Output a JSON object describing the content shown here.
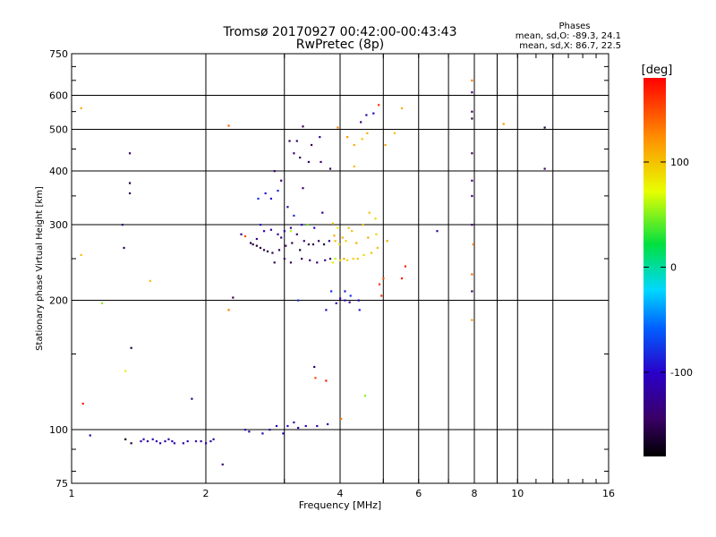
{
  "chart_data": {
    "type": "scatter",
    "title": "Tromsø 20170927 00:42:00-00:43:43",
    "subtitle": "RwPretec (8p)",
    "xlabel": "Frequency [MHz]",
    "ylabel": "Stationary phase Virtual Height [km]",
    "x_scale": "log",
    "y_scale": "log",
    "xlim": [
      1,
      16
    ],
    "ylim": [
      75,
      750
    ],
    "x_ticks": [
      1,
      2,
      4,
      6,
      8,
      10,
      16
    ],
    "y_ticks": [
      75,
      100,
      200,
      300,
      400,
      500,
      600,
      750
    ],
    "x_minor_gridlines": [
      3,
      5,
      7,
      9,
      12
    ],
    "grid": true,
    "phase_stats": {
      "title": "Phases",
      "o_line": "mean, sd,O: -89.3, 24.1",
      "x_line": "mean, sd,X: 86.7, 22.5"
    },
    "colorbar": {
      "label": "[deg]",
      "range": [
        -180,
        180
      ],
      "ticks": [
        100,
        0,
        -100
      ]
    },
    "point_color_unit": "deg",
    "points": [
      [
        1.05,
        560,
        110
      ],
      [
        1.05,
        255,
        100
      ],
      [
        1.06,
        115,
        170
      ],
      [
        1.1,
        97,
        -120
      ],
      [
        1.17,
        197,
        50
      ],
      [
        1.3,
        300,
        -140
      ],
      [
        1.31,
        265,
        -150
      ],
      [
        1.32,
        95,
        -170
      ],
      [
        1.32,
        137,
        80
      ],
      [
        1.35,
        440,
        -150
      ],
      [
        1.35,
        375,
        -160
      ],
      [
        1.35,
        355,
        -150
      ],
      [
        1.36,
        155,
        -160
      ],
      [
        1.36,
        93,
        -160
      ],
      [
        1.5,
        222,
        100
      ],
      [
        1.43,
        94,
        -115
      ],
      [
        1.45,
        95,
        -110
      ],
      [
        1.48,
        94,
        -120
      ],
      [
        1.52,
        95,
        -110
      ],
      [
        1.55,
        94,
        -115
      ],
      [
        1.58,
        93,
        -110
      ],
      [
        1.62,
        94,
        -120
      ],
      [
        1.65,
        95,
        -115
      ],
      [
        1.68,
        94,
        -110
      ],
      [
        1.7,
        93,
        -120
      ],
      [
        1.78,
        93,
        -115
      ],
      [
        1.82,
        94,
        -110
      ],
      [
        1.86,
        118,
        -130
      ],
      [
        1.9,
        94,
        -115
      ],
      [
        1.95,
        94,
        -120
      ],
      [
        2.0,
        93,
        -110
      ],
      [
        2.05,
        94,
        -115
      ],
      [
        2.08,
        95,
        -120
      ],
      [
        2.18,
        83,
        -140
      ],
      [
        2.25,
        510,
        140
      ],
      [
        2.25,
        190,
        130
      ],
      [
        2.3,
        203,
        -150
      ],
      [
        2.4,
        285,
        -130
      ],
      [
        2.45,
        282,
        150
      ],
      [
        2.45,
        100,
        -110
      ],
      [
        2.5,
        99,
        -120
      ],
      [
        2.52,
        272,
        -160
      ],
      [
        2.55,
        270,
        -150
      ],
      [
        2.6,
        268,
        -160
      ],
      [
        2.6,
        278,
        -120
      ],
      [
        2.62,
        345,
        -80
      ],
      [
        2.65,
        265,
        -160
      ],
      [
        2.65,
        300,
        -100
      ],
      [
        2.68,
        98,
        -110
      ],
      [
        2.7,
        262,
        -155
      ],
      [
        2.7,
        290,
        -110
      ],
      [
        2.72,
        355,
        -90
      ],
      [
        2.75,
        260,
        -160
      ],
      [
        2.78,
        100,
        -120
      ],
      [
        2.8,
        345,
        -95
      ],
      [
        2.8,
        292,
        -120
      ],
      [
        2.82,
        258,
        -150
      ],
      [
        2.85,
        400,
        -140
      ],
      [
        2.85,
        245,
        -150
      ],
      [
        2.88,
        102,
        -110
      ],
      [
        2.9,
        285,
        -130
      ],
      [
        2.9,
        360,
        -85
      ],
      [
        2.92,
        262,
        -145
      ],
      [
        2.95,
        280,
        -140
      ],
      [
        2.95,
        380,
        -140
      ],
      [
        2.98,
        98,
        -110
      ],
      [
        3.0,
        290,
        -120
      ],
      [
        3.0,
        250,
        -140
      ],
      [
        3.02,
        268,
        -150
      ],
      [
        3.05,
        330,
        -120
      ],
      [
        3.05,
        102,
        -100
      ],
      [
        3.08,
        470,
        -150
      ],
      [
        3.1,
        295,
        -130
      ],
      [
        3.1,
        290,
        60
      ],
      [
        3.1,
        245,
        -145
      ],
      [
        3.12,
        272,
        -150
      ],
      [
        3.15,
        440,
        -140
      ],
      [
        3.15,
        315,
        -80
      ],
      [
        3.15,
        104,
        -115
      ],
      [
        3.2,
        285,
        -135
      ],
      [
        3.2,
        470,
        -140
      ],
      [
        3.22,
        200,
        -80
      ],
      [
        3.22,
        101,
        -120
      ],
      [
        3.25,
        430,
        -150
      ],
      [
        3.25,
        262,
        -160
      ],
      [
        3.28,
        250,
        -150
      ],
      [
        3.28,
        300,
        -100
      ],
      [
        3.3,
        365,
        -140
      ],
      [
        3.3,
        508,
        -150
      ],
      [
        3.32,
        275,
        -140
      ],
      [
        3.35,
        102,
        -110
      ],
      [
        3.38,
        300,
        40
      ],
      [
        3.4,
        270,
        -150
      ],
      [
        3.4,
        420,
        -145
      ],
      [
        3.42,
        248,
        -145
      ],
      [
        3.45,
        460,
        -150
      ],
      [
        3.48,
        270,
        -155
      ],
      [
        3.5,
        295,
        -100
      ],
      [
        3.5,
        140,
        -150
      ],
      [
        3.52,
        132,
        150
      ],
      [
        3.55,
        102,
        -115
      ],
      [
        3.55,
        245,
        -140
      ],
      [
        3.58,
        275,
        -150
      ],
      [
        3.6,
        480,
        -130
      ],
      [
        3.62,
        420,
        -140
      ],
      [
        3.65,
        320,
        -130
      ],
      [
        3.68,
        270,
        -160
      ],
      [
        3.7,
        248,
        -130
      ],
      [
        3.72,
        190,
        -100
      ],
      [
        3.72,
        130,
        170
      ],
      [
        3.75,
        103,
        -110
      ],
      [
        3.78,
        275,
        -140
      ],
      [
        3.8,
        405,
        -150
      ],
      [
        3.8,
        250,
        -140
      ],
      [
        3.82,
        210,
        -80
      ],
      [
        3.85,
        302,
        100
      ],
      [
        3.85,
        245,
        80
      ],
      [
        3.88,
        283,
        110
      ],
      [
        3.9,
        275,
        100
      ],
      [
        3.9,
        250,
        60
      ],
      [
        3.92,
        197,
        -120
      ],
      [
        3.95,
        295,
        80
      ],
      [
        3.95,
        505,
        130
      ],
      [
        3.98,
        270,
        90
      ],
      [
        4.0,
        248,
        90
      ],
      [
        4.0,
        202,
        -110
      ],
      [
        4.02,
        106,
        130
      ],
      [
        4.05,
        280,
        110
      ],
      [
        4.08,
        250,
        110
      ],
      [
        4.1,
        200,
        -110
      ],
      [
        4.1,
        210,
        -90
      ],
      [
        4.12,
        275,
        90
      ],
      [
        4.15,
        248,
        90
      ],
      [
        4.15,
        480,
        120
      ],
      [
        4.18,
        295,
        100
      ],
      [
        4.2,
        198,
        -120
      ],
      [
        4.22,
        205,
        -80
      ],
      [
        4.25,
        290,
        100
      ],
      [
        4.28,
        250,
        95
      ],
      [
        4.3,
        460,
        110
      ],
      [
        4.3,
        410,
        100
      ],
      [
        4.35,
        272,
        110
      ],
      [
        4.38,
        250,
        100
      ],
      [
        4.4,
        200,
        -110
      ],
      [
        4.42,
        190,
        -90
      ],
      [
        4.45,
        520,
        -130
      ],
      [
        4.48,
        475,
        100
      ],
      [
        4.5,
        300,
        100
      ],
      [
        4.52,
        255,
        90
      ],
      [
        4.55,
        120,
        50
      ],
      [
        4.58,
        540,
        -120
      ],
      [
        4.6,
        490,
        110
      ],
      [
        4.62,
        280,
        110
      ],
      [
        4.65,
        320,
        100
      ],
      [
        4.7,
        258,
        100
      ],
      [
        4.75,
        545,
        -100
      ],
      [
        4.8,
        310,
        90
      ],
      [
        4.82,
        285,
        90
      ],
      [
        4.85,
        265,
        100
      ],
      [
        4.88,
        570,
        160
      ],
      [
        4.9,
        218,
        160
      ],
      [
        4.95,
        205,
        160
      ],
      [
        5.0,
        225,
        150
      ],
      [
        5.05,
        460,
        110
      ],
      [
        5.1,
        275,
        110
      ],
      [
        5.3,
        490,
        100
      ],
      [
        5.5,
        560,
        110
      ],
      [
        5.5,
        225,
        170
      ],
      [
        5.6,
        240,
        170
      ],
      [
        6.6,
        290,
        -120
      ],
      [
        7.9,
        650,
        130
      ],
      [
        7.9,
        610,
        -140
      ],
      [
        7.9,
        550,
        -150
      ],
      [
        7.9,
        530,
        -160
      ],
      [
        7.9,
        440,
        -150
      ],
      [
        7.9,
        380,
        -140
      ],
      [
        7.9,
        350,
        -140
      ],
      [
        7.9,
        300,
        -140
      ],
      [
        7.9,
        230,
        140
      ],
      [
        7.9,
        210,
        -150
      ],
      [
        7.9,
        180,
        120
      ],
      [
        7.95,
        270,
        130
      ],
      [
        9.3,
        515,
        120
      ],
      [
        11.5,
        505,
        -160
      ],
      [
        11.5,
        405,
        -140
      ]
    ]
  }
}
